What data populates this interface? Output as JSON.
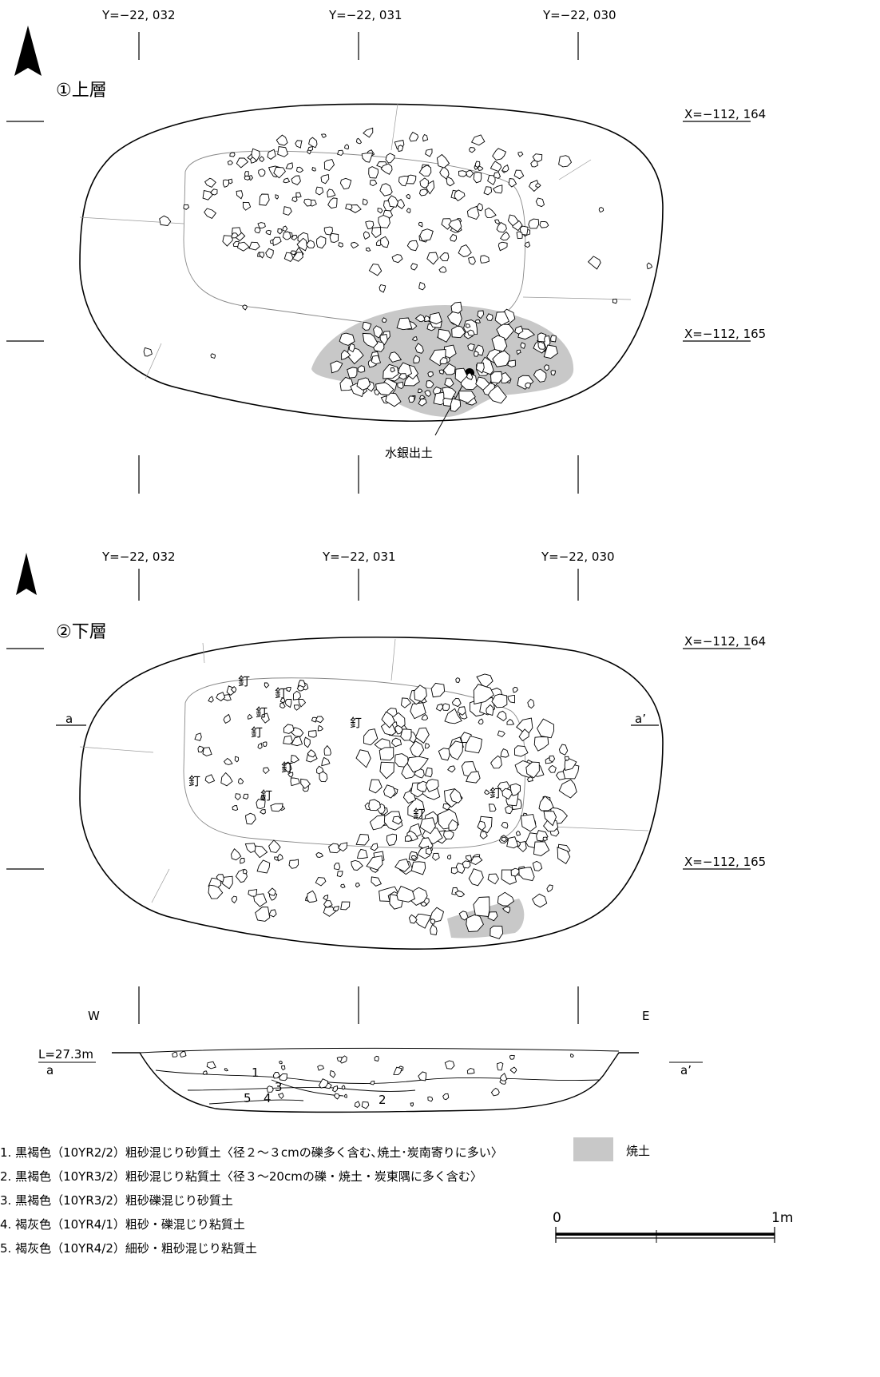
{
  "upper_plan": {
    "title": "①上層",
    "y_labels": [
      "Y=−22, 032",
      "Y=−22, 031",
      "Y=−22, 030"
    ],
    "x_labels": [
      "X=−112, 164",
      "X=−112, 165"
    ],
    "annotation": "水銀出土"
  },
  "lower_plan": {
    "title": "②下層",
    "y_labels": [
      "Y=−22, 032",
      "Y=−22, 031",
      "Y=−22, 030"
    ],
    "x_labels": [
      "X=−112, 164",
      "X=−112, 165"
    ],
    "section_left": "a",
    "section_right": "a’",
    "nail_label": "釘"
  },
  "section": {
    "west": "W",
    "east": "E",
    "level": "L=27.3m",
    "left_mark": "a",
    "right_mark": "a’",
    "layer_numbers": [
      "1",
      "2",
      "3",
      "4",
      "5"
    ]
  },
  "legend": {
    "layers": [
      "1. 黒褐色（10YR2/2）粗砂混じり砂質土〈径２〜３cmの礫多く含む､焼土･炭南寄りに多い〉",
      "2. 黒褐色（10YR3/2）粗砂混じり粘質土〈径３〜20cmの礫・焼土・炭東隅に多く含む〉",
      "3. 黒褐色（10YR3/2）粗砂礫混じり砂質土",
      "4. 褐灰色（10YR4/1）粗砂・礫混じり粘質土",
      "5. 褐灰色（10YR4/2）細砂・粗砂混じり粘質土"
    ],
    "burnt_soil_label": "焼土",
    "burnt_soil_color": "#c8c8c8"
  },
  "scale": {
    "zero": "0",
    "one": "1m"
  }
}
